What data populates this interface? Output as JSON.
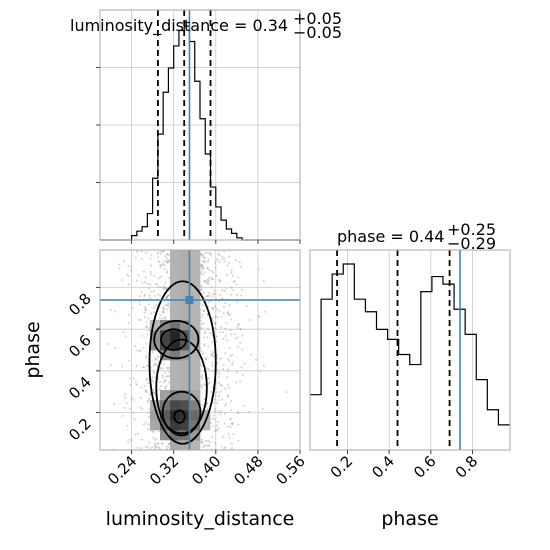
{
  "colors": {
    "truth": "#4682b4",
    "hist": "#000000",
    "grid": "#c8c8c8"
  },
  "chart_data": {
    "type": "corner",
    "parameters": [
      "luminosity_distance",
      "phase"
    ],
    "truths": {
      "luminosity_distance": 0.35,
      "phase": 0.74
    },
    "titles": [
      {
        "param": "luminosity_distance",
        "main": "luminosity_distance = 0.34",
        "plus": "+0.05",
        "minus": "−0.05"
      },
      {
        "param": "phase",
        "main": "phase = 0.44",
        "plus": "+0.25",
        "minus": "−0.29"
      }
    ],
    "xlabels": [
      "luminosity_distance",
      "phase"
    ],
    "ylabels": [
      "phase"
    ],
    "luminosity_distance_axis": {
      "range": [
        0.18,
        0.56
      ],
      "ticks": [
        0.24,
        0.32,
        0.4,
        0.48,
        0.56
      ],
      "tick_labels": [
        "0.24",
        "0.32",
        "0.40",
        "0.48",
        "0.56"
      ]
    },
    "phase_axis": {
      "range": [
        0.02,
        0.98
      ],
      "ticks": [
        0.2,
        0.4,
        0.6,
        0.8
      ],
      "tick_labels": [
        "0.2",
        "0.4",
        "0.6",
        "0.8"
      ]
    },
    "luminosity_distance_hist": {
      "bin_edges": [
        0.18,
        0.19,
        0.2,
        0.21,
        0.22,
        0.23,
        0.24,
        0.25,
        0.26,
        0.27,
        0.28,
        0.29,
        0.3,
        0.31,
        0.32,
        0.33,
        0.34,
        0.35,
        0.36,
        0.37,
        0.38,
        0.39,
        0.4,
        0.41,
        0.42,
        0.43,
        0.44,
        0.45,
        0.46,
        0.47,
        0.48,
        0.49,
        0.5,
        0.51,
        0.52,
        0.53,
        0.54,
        0.55,
        0.56
      ],
      "counts": [
        0.0,
        0.0,
        0.0,
        0.0,
        0.0,
        0.0,
        0.02,
        0.04,
        0.06,
        0.12,
        0.28,
        0.48,
        0.67,
        0.78,
        0.88,
        0.95,
        0.97,
        0.9,
        0.72,
        0.55,
        0.39,
        0.24,
        0.15,
        0.09,
        0.05,
        0.03,
        0.01,
        0.0,
        0.0,
        0.0,
        0.0,
        0.0,
        0.0,
        0.0,
        0.0,
        0.0,
        0.0,
        0.0
      ],
      "quantiles": [
        0.29,
        0.34,
        0.39
      ]
    },
    "phase_hist": {
      "bin_edges": [
        0.02,
        0.0732,
        0.1264,
        0.1796,
        0.2328,
        0.286,
        0.3392,
        0.3924,
        0.4456,
        0.4988,
        0.552,
        0.6052,
        0.6584,
        0.7116,
        0.7648,
        0.818,
        0.8712,
        0.9244,
        0.98
      ],
      "counts": [
        0.22,
        0.6,
        0.7,
        0.74,
        0.6,
        0.55,
        0.48,
        0.44,
        0.38,
        0.34,
        0.63,
        0.69,
        0.66,
        0.56,
        0.46,
        0.28,
        0.16,
        0.1
      ],
      "quantiles": [
        0.15,
        0.44,
        0.69
      ]
    },
    "density_2d": {
      "x": "luminosity_distance",
      "y": "phase",
      "peaks": [
        {
          "luminosity_distance": 0.32,
          "phase": 0.55
        },
        {
          "luminosity_distance": 0.33,
          "phase": 0.18
        }
      ]
    }
  }
}
